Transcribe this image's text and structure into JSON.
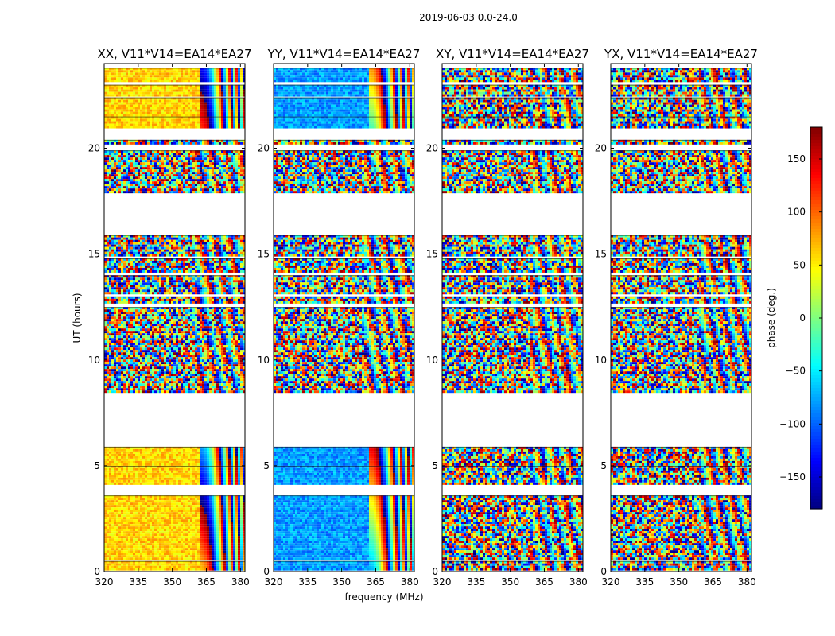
{
  "chart_data": {
    "type": "heatmap",
    "suptitle": "2019-06-03 0.0-24.0",
    "xlabel": "frequency (MHz)",
    "ylabel": "UT (hours)",
    "xlim": [
      320,
      382
    ],
    "ylim": [
      0,
      24
    ],
    "xticks": [
      320,
      335,
      350,
      365,
      380
    ],
    "yticks": [
      0,
      5,
      10,
      15,
      20
    ],
    "panels": [
      {
        "title": "XX, V11*V14=EA14*EA27",
        "base_phase": 60,
        "noisy_bands": [
          [
            6.0,
            21.0
          ]
        ]
      },
      {
        "title": "YY, V11*V14=EA14*EA27",
        "base_phase": -80,
        "noisy_bands": [
          [
            6.0,
            21.0
          ]
        ]
      },
      {
        "title": "XY, V11*V14=EA14*EA27",
        "base_phase": null,
        "noisy_bands": [
          [
            0.0,
            24.0
          ]
        ]
      },
      {
        "title": "YX, V11*V14=EA14*EA27",
        "base_phase": null,
        "noisy_bands": [
          [
            0.0,
            24.0
          ]
        ]
      }
    ],
    "data_blocks_hours": [
      [
        0.1,
        0.5
      ],
      [
        0.6,
        3.6
      ],
      [
        4.1,
        5.0
      ],
      [
        5.1,
        5.9
      ],
      [
        8.5,
        12.5
      ],
      [
        12.7,
        13.0
      ],
      [
        13.2,
        14.0
      ],
      [
        14.2,
        14.8
      ],
      [
        14.9,
        15.9
      ],
      [
        17.9,
        19.9
      ],
      [
        20.2,
        20.4
      ],
      [
        21.0,
        21.5
      ],
      [
        21.6,
        22.4
      ],
      [
        22.5,
        23.0
      ],
      [
        23.2,
        23.8
      ]
    ],
    "gap_hours": [
      [
        5.95,
        8.45
      ],
      [
        15.95,
        17.85
      ]
    ],
    "colorbar": {
      "label": "phase (deg.)",
      "range": [
        -180,
        180
      ],
      "ticks": [
        -150,
        -100,
        -50,
        0,
        50,
        100,
        150
      ],
      "tick_labels": [
        "−150",
        "−100",
        "−50",
        "0",
        "50",
        "100",
        "150"
      ],
      "colormap": "jet"
    }
  }
}
